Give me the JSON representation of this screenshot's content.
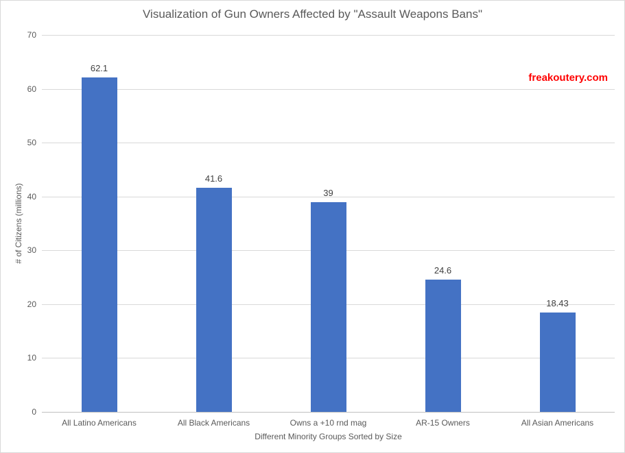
{
  "chart_data": {
    "type": "bar",
    "title": "Visualization of Gun Owners Affected by \"Assault Weapons Bans\"",
    "categories": [
      "All Latino Americans",
      "All Black Americans",
      "Owns a +10 rnd mag",
      "AR-15 Owners",
      "All Asian Americans"
    ],
    "values": [
      62.1,
      41.6,
      39,
      24.6,
      18.43
    ],
    "value_labels": [
      "62.1",
      "41.6",
      "39",
      "24.6",
      "18.43"
    ],
    "xlabel": "Different Minority Groups Sorted by Size",
    "ylabel": "# of Citizens (millions)",
    "ylim": [
      0,
      70
    ],
    "ytick_step": 10,
    "yticks": [
      "0",
      "10",
      "20",
      "30",
      "40",
      "50",
      "60",
      "70"
    ],
    "grid": "horizontal",
    "legend": "none",
    "bar_color": "#4472C4"
  },
  "branding": {
    "text": "freakoutery.com",
    "color": "#FF0000"
  },
  "colors": {
    "gridline": "#D9D9D9",
    "axis_line": "#BFBFBF",
    "border": "#D9D9D9",
    "axis_text": "#595959",
    "data_label_text": "#404040",
    "background": "#FFFFFF"
  }
}
